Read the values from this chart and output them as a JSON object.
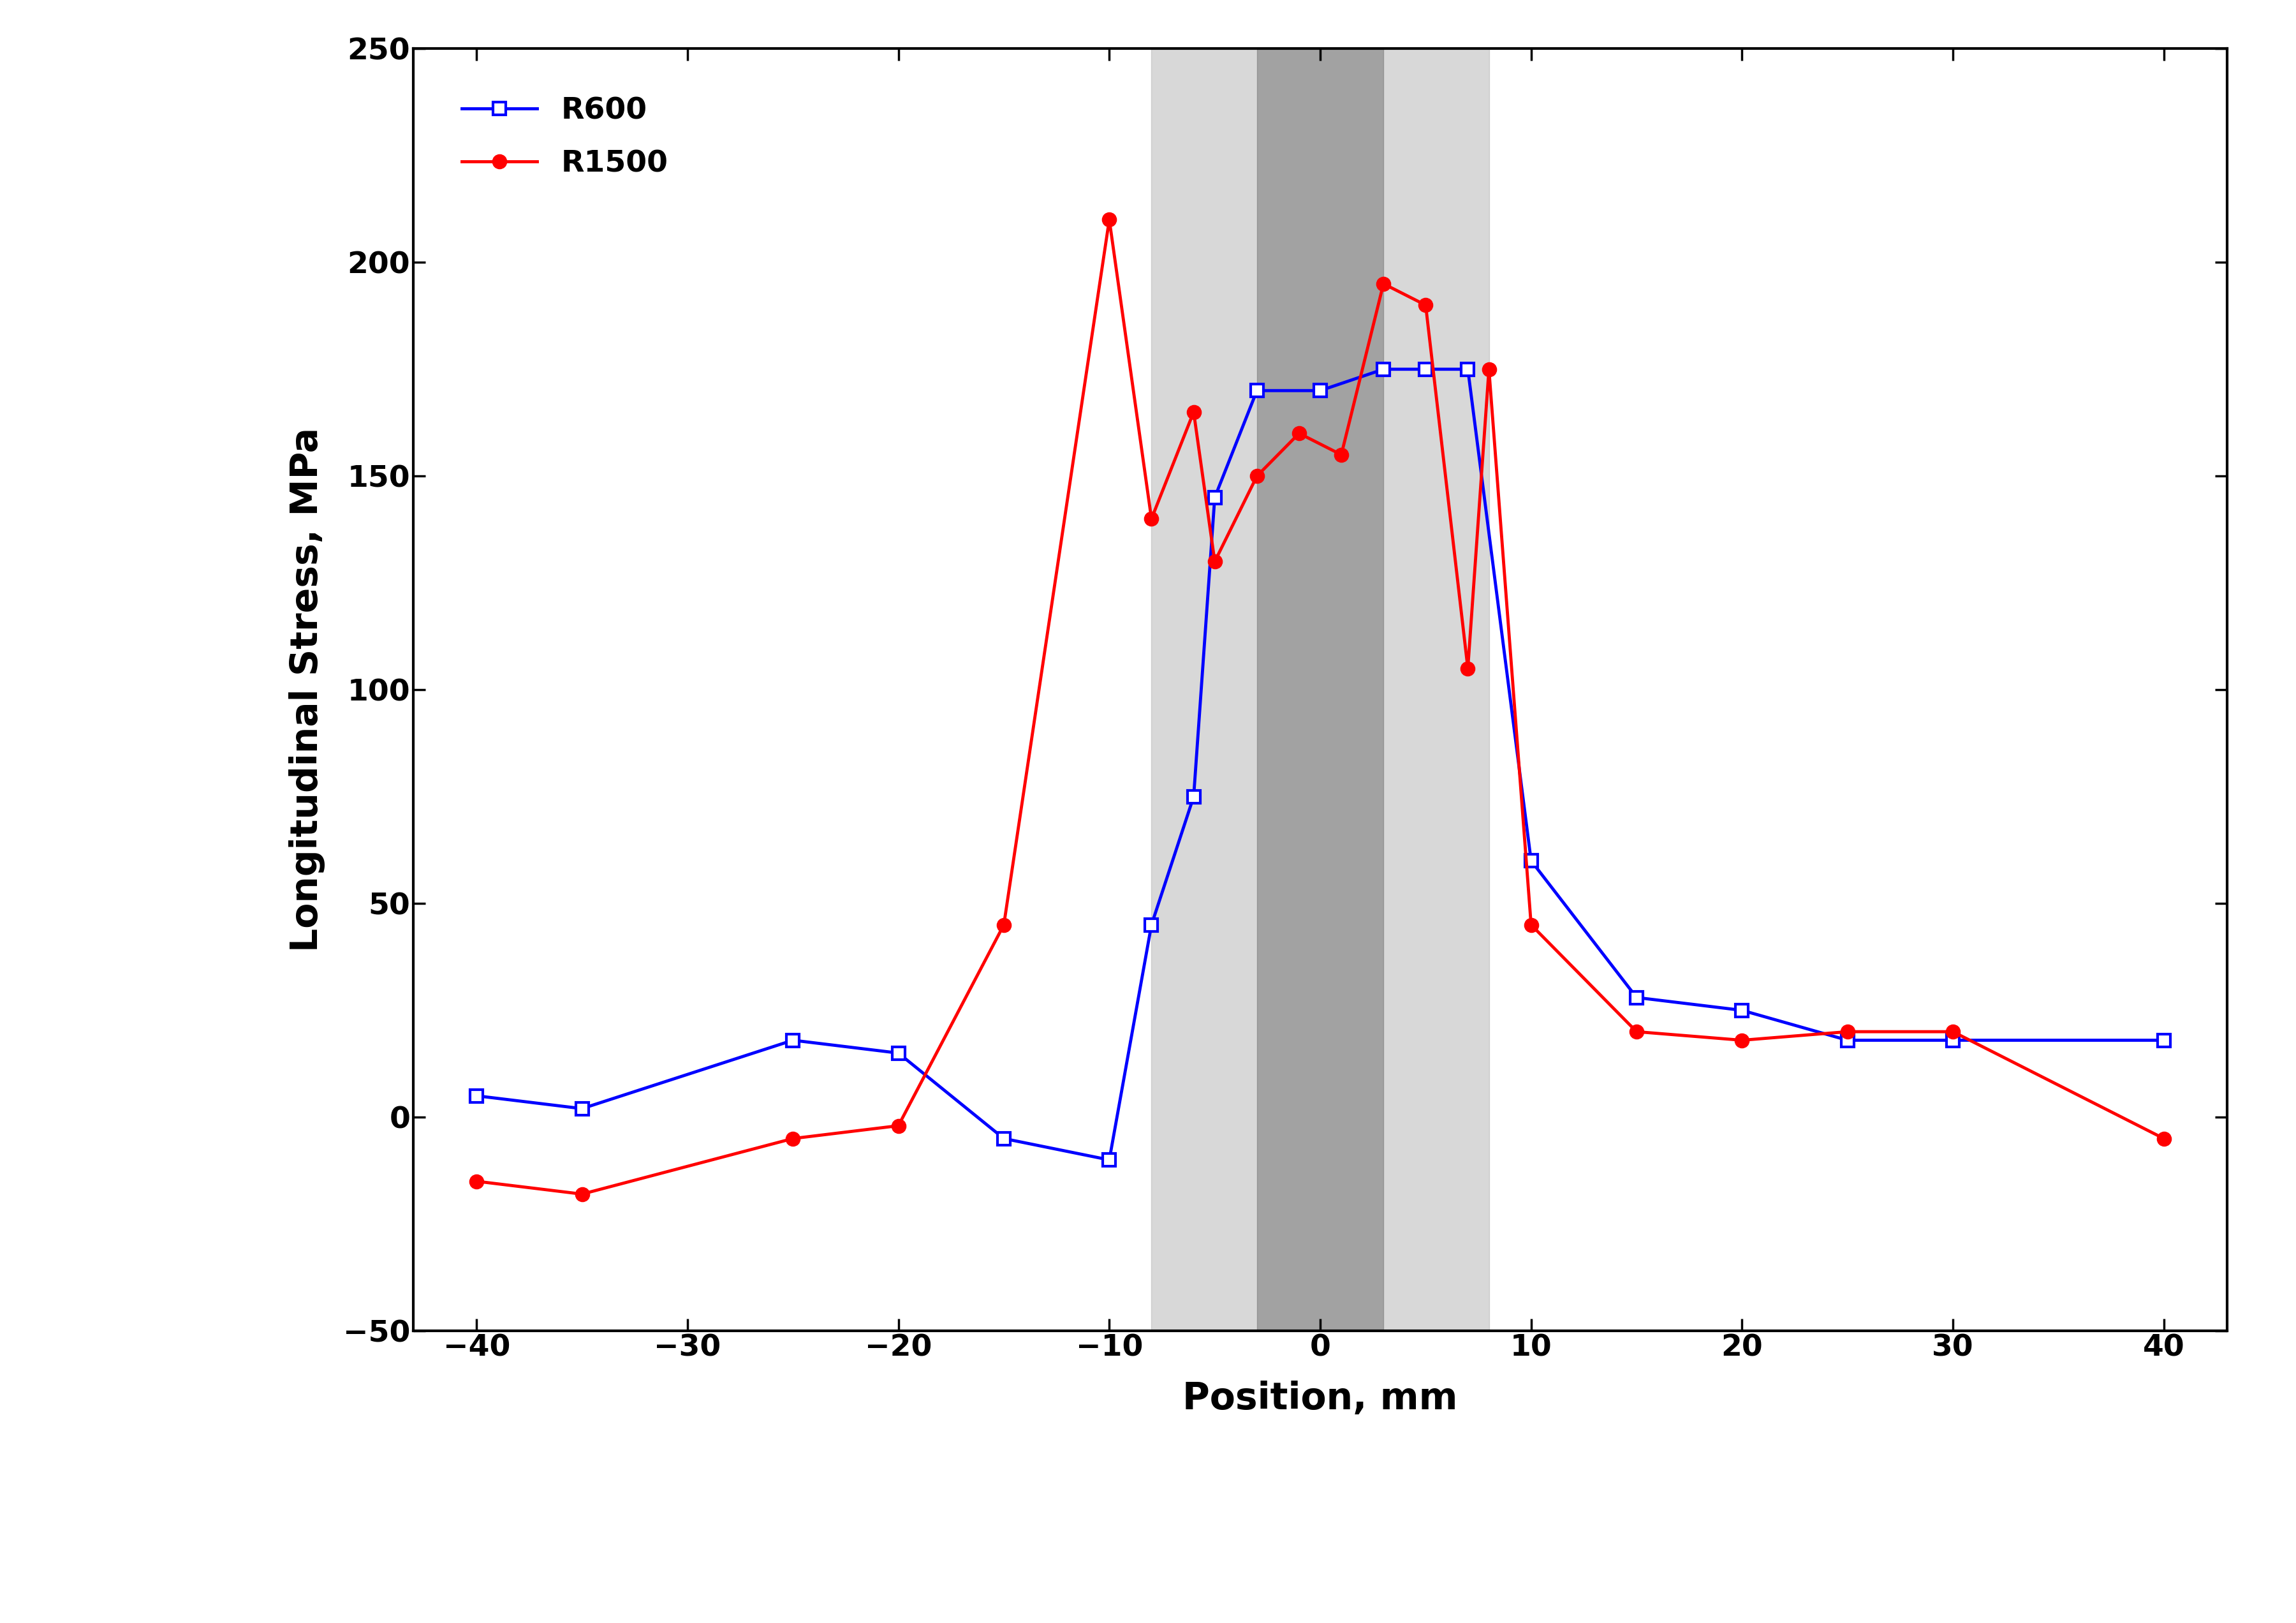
{
  "R600_x": [
    -40,
    -35,
    -25,
    -20,
    -15,
    -10,
    -8,
    -6,
    -5,
    -3,
    0,
    3,
    5,
    7,
    10,
    15,
    20,
    25,
    30,
    40
  ],
  "R600_y": [
    5,
    2,
    18,
    15,
    -5,
    -10,
    45,
    75,
    145,
    170,
    170,
    175,
    175,
    175,
    60,
    28,
    25,
    18,
    18,
    18
  ],
  "R1500_x": [
    -40,
    -35,
    -25,
    -20,
    -15,
    -10,
    -8,
    -6,
    -5,
    -3,
    -1,
    1,
    3,
    5,
    7,
    8,
    10,
    15,
    20,
    25,
    30,
    40
  ],
  "R1500_y": [
    -15,
    -18,
    -5,
    -2,
    45,
    210,
    140,
    165,
    130,
    150,
    160,
    155,
    195,
    190,
    105,
    175,
    45,
    20,
    18,
    20,
    20,
    -5
  ],
  "shading_light_x1": -8,
  "shading_light_x2": 8,
  "shading_dark_x1": -3,
  "shading_dark_x2": 3,
  "xlim": [
    -43,
    43
  ],
  "ylim": [
    -50,
    250
  ],
  "xticks": [
    -40,
    -30,
    -20,
    -10,
    0,
    10,
    20,
    30,
    40
  ],
  "yticks": [
    -50,
    0,
    50,
    100,
    150,
    200,
    250
  ],
  "xlabel": "Position, mm",
  "ylabel": "Longitudinal Stress, MPa",
  "legend_labels": [
    "R600",
    "R1500"
  ],
  "blue_color": "#0000FF",
  "red_color": "#FF0000",
  "light_gray": "#AAAAAA",
  "dark_gray": "#777777",
  "background_color": "#FFFFFF",
  "light_gray_alpha": 0.45,
  "dark_gray_alpha": 0.55,
  "linewidth": 3.5,
  "markersize": 14,
  "markeredgewidth": 3.0,
  "tick_fontsize": 34,
  "label_fontsize": 42,
  "legend_fontsize": 34,
  "spine_linewidth": 3.0
}
